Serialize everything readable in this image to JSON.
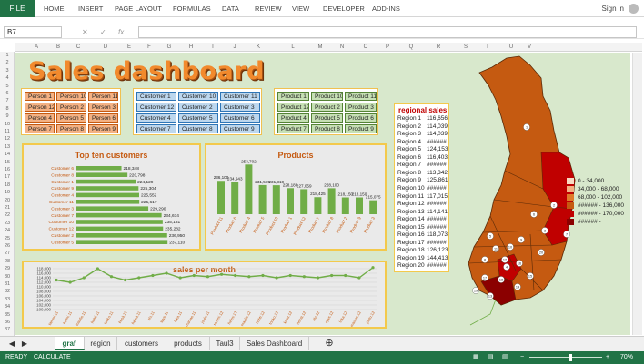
{
  "ribbon": {
    "file": "FILE",
    "tabs": [
      "HOME",
      "INSERT",
      "PAGE LAYOUT",
      "FORMULAS",
      "DATA",
      "REVIEW",
      "VIEW",
      "DEVELOPER",
      "ADD-INS"
    ],
    "signin": "Sign in"
  },
  "formula_bar": {
    "name_box": "B7",
    "cancel": "✕",
    "enter": "✓",
    "fx": "fx",
    "formula": ""
  },
  "columns": [
    "A",
    "B",
    "C",
    "D",
    "E",
    "F",
    "G",
    "H",
    "I",
    "J",
    "K",
    "L",
    "M",
    "N",
    "O",
    "P",
    "Q",
    "R",
    "S",
    "T",
    "U",
    "V"
  ],
  "rows": [
    "1",
    "2",
    "3",
    "4",
    "5",
    "6",
    "7",
    "8",
    "9",
    "10",
    "11",
    "12",
    "13",
    "14",
    "15",
    "16",
    "17",
    "18",
    "19",
    "20",
    "21",
    "22",
    "23",
    "24",
    "25",
    "26",
    "27",
    "28",
    "29",
    "30",
    "31",
    "32",
    "33",
    "34",
    "35",
    "36",
    "37"
  ],
  "dashboard": {
    "title": "Sales dashboard",
    "person_slicer": [
      "Person 1",
      "Person 10",
      "Person 11",
      "Person 12",
      "Person 2",
      "Person 3",
      "Person 4",
      "Person 5",
      "Person 6",
      "Person 7",
      "Person 8",
      "Person 9"
    ],
    "customer_slicer": [
      "Customer 1",
      "Customer 10",
      "Customer 11",
      "Customer 12",
      "Customer 2",
      "Customer 3",
      "Customer 4",
      "Customer 5",
      "Customer 6",
      "Customer 7",
      "Customer 8",
      "Customer 9"
    ],
    "product_slicer": [
      "Product 1",
      "Product 10",
      "Product 11",
      "Product 12",
      "Product 2",
      "Product 3",
      "Product 4",
      "Product 5",
      "Product 6",
      "Product 7",
      "Product 8",
      "Product 9"
    ],
    "regional": {
      "title": "regional sales",
      "rows": [
        {
          "region": "Region 1",
          "value": "116,656"
        },
        {
          "region": "Region 2",
          "value": "114,039"
        },
        {
          "region": "Region 3",
          "value": "114,039"
        },
        {
          "region": "Region 4",
          "value": "######"
        },
        {
          "region": "Region 5",
          "value": "124,153"
        },
        {
          "region": "Region 6",
          "value": "116,403"
        },
        {
          "region": "Region 7",
          "value": "######"
        },
        {
          "region": "Region 8",
          "value": "113,342"
        },
        {
          "region": "Region 9",
          "value": "125,861"
        },
        {
          "region": "Region 10",
          "value": "######"
        },
        {
          "region": "Region 11",
          "value": "117,015"
        },
        {
          "region": "Region 12",
          "value": "######"
        },
        {
          "region": "Region 13",
          "value": "114,141"
        },
        {
          "region": "Region 14",
          "value": "######"
        },
        {
          "region": "Region 15",
          "value": "######"
        },
        {
          "region": "Region 16",
          "value": "118,073"
        },
        {
          "region": "Region 17",
          "value": "######"
        },
        {
          "region": "Region 18",
          "value": "126,123"
        },
        {
          "region": "Region 19",
          "value": "144,413"
        },
        {
          "region": "Region 20",
          "value": "######"
        }
      ]
    },
    "legend": [
      {
        "label": "0  -  34,000",
        "color": "#f8d9c2"
      },
      {
        "label": "34,000  -  68,000",
        "color": "#f4b183"
      },
      {
        "label": "68,000  -  102,000",
        "color": "#e07b2a"
      },
      {
        "label": "######  -  136,000",
        "color": "#c55a11"
      },
      {
        "label": "######  -  170,000",
        "color": "#c00000"
      },
      {
        "label": "######  -",
        "color": "#8b0000"
      }
    ],
    "map_regions": [
      "1",
      "2",
      "3",
      "4",
      "5",
      "6",
      "7",
      "8",
      "9",
      "10",
      "11",
      "12",
      "13",
      "14",
      "15",
      "16",
      "17",
      "18",
      "19",
      "20"
    ]
  },
  "chart_data": [
    {
      "type": "bar",
      "title": "Top ten customers",
      "orientation": "horizontal",
      "categories": [
        "Customer 6",
        "Customer 8",
        "Customer 1",
        "Customer 9",
        "Customer 4",
        "Customer 11",
        "Customer 3",
        "Customer 7",
        "Customer 10",
        "Customer 12",
        "Customer 2",
        "Customer 5"
      ],
      "values": [
        218348,
        220798,
        224129,
        225304,
        225552,
        225617,
        229290,
        234674,
        235131,
        235282,
        236950,
        237110
      ],
      "labels": [
        "218,348",
        "220,798",
        "224,129",
        "225,304",
        "225,552",
        "225,617",
        "229,290",
        "234,674",
        "235,131",
        "235,282",
        "236,950",
        "237,110"
      ],
      "color": "#70ad47"
    },
    {
      "type": "bar",
      "title": "Products",
      "categories": [
        "Product 11",
        "Product 6",
        "Product 4",
        "Product 5",
        "Product 10",
        "Product 1",
        "Product 12",
        "Product 7",
        "Product 8",
        "Product 2",
        "Product 9",
        "Product 3"
      ],
      "values": [
        236100,
        234943,
        253702,
        231515,
        231310,
        228188,
        227059,
        218425,
        228100,
        218150,
        218150,
        215075
      ],
      "labels": [
        "236,100",
        "234,943",
        "253,702",
        "231,515",
        "231,310",
        "228,188",
        "227,059",
        "218,425",
        "228,100",
        "218,150",
        "218,150",
        "215,075"
      ],
      "color": "#70ad47"
    },
    {
      "type": "line",
      "title": "sales per month",
      "categories": [
        "tammi.11",
        "helmi.11",
        "maalis.11",
        "huhti.11",
        "touko.11",
        "kesä.11",
        "heinä.11",
        "elo.11",
        "syys.11",
        "loka.11",
        "marras.11",
        "joulu.11",
        "tammi.12",
        "helmi.12",
        "maalis.12",
        "huhti.12",
        "touko.12",
        "kesä.12",
        "heinä.12",
        "elo.12",
        "syys.12",
        "loka.12",
        "marras.12",
        "joulu.12"
      ],
      "values": [
        113000,
        112000,
        114000,
        118000,
        114500,
        113000,
        114000,
        115000,
        116000,
        114000,
        115000,
        114500,
        115500,
        115000,
        114500,
        115000,
        114000,
        115000,
        114500,
        114000,
        115000,
        115000,
        114000,
        118500
      ],
      "yticks": [
        "118,000",
        "116,000",
        "114,000",
        "112,000",
        "110,000",
        "108,000",
        "106,000",
        "104,000",
        "102,000",
        "100,000"
      ],
      "ylim": [
        100000,
        118000
      ],
      "color": "#70ad47"
    }
  ],
  "sheet_tabs": [
    "graf",
    "region",
    "customers",
    "products",
    "Taul3",
    "Sales Dashboard"
  ],
  "status": {
    "ready": "READY",
    "calculate": "CALCULATE",
    "zoom": "70%"
  }
}
